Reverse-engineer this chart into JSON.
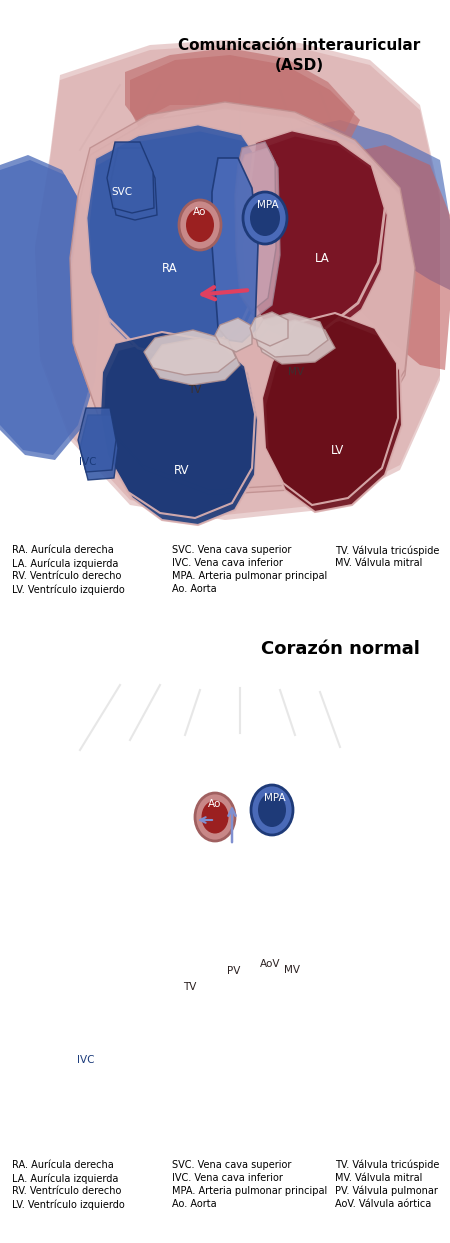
{
  "title_asd": "Comunicación interauricular\n(ASD)",
  "title_normal": "Corazón normal",
  "bg_color": "#ffffff",
  "legend1_col1": [
    "RA. Aurícula derecha",
    "LA. Aurícula izquierda",
    "RV. Ventrículo derecho",
    "LV. Ventrículo izquierdo"
  ],
  "legend1_col2": [
    "SVC. Vena cava superior",
    "IVC. Vena cava inferior",
    "MPA. Arteria pulmonar principal",
    "Ao. Aorta"
  ],
  "legend1_col3": [
    "TV. Válvula tricúspide",
    "MV. Válvula mitral"
  ],
  "legend2_col1": [
    "RA. Aurícula derecha",
    "LA. Aurícula izquierda",
    "RV. Ventrículo derecho",
    "LV. Ventrículo izquierdo"
  ],
  "legend2_col2": [
    "SVC. Vena cava superior",
    "IVC. Vena cava inferior",
    "MPA. Arteria pulmonar principal",
    "Ao. Aorta"
  ],
  "legend2_col3": [
    "TV. Válvula tricúspide",
    "MV. Válvula mitral",
    "PV. Válvula pulmonar",
    "AoV. Válvula aórtica"
  ],
  "label_fontsize": 7,
  "title_fontsize": 11
}
